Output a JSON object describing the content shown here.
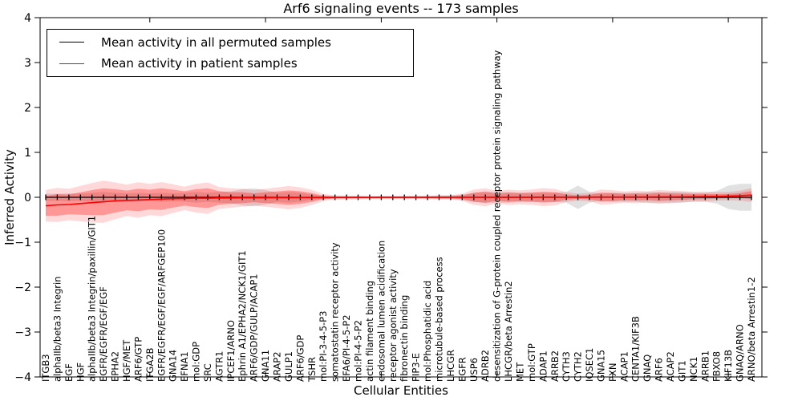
{
  "title": "Arf6 signaling events -- 173 samples",
  "legend": {
    "entries": [
      {
        "label": "Mean activity in all permuted samples",
        "color": "#000000"
      },
      {
        "label": "Mean activity in patient samples",
        "color": "#ff0000"
      }
    ]
  },
  "chart_data": {
    "type": "line",
    "title": "Arf6 signaling events -- 173 samples",
    "xlabel": "Cellular Entities",
    "ylabel": "Inferred Activity",
    "ylim": [
      -4,
      4
    ],
    "yticks": [
      4,
      3,
      2,
      1,
      0,
      -1,
      -2,
      -3,
      -4
    ],
    "xtick_indices": [
      9,
      19,
      29,
      39,
      49,
      59
    ],
    "grid": false,
    "legend_position": "upper left",
    "categories": [
      "ITGB3",
      "alphaIIb/beta3 Integrin",
      "EGF",
      "HGF",
      "alphaIIb/beta3 Integrin/paxillin/GIT1",
      "EGFR/EGFR/EGF/EGF",
      "EPHA2",
      "HGF/MET",
      "ARF6/GTP",
      "ITGA2B",
      "EGFR/EGFR/EGF/EGF/ARFGEP100",
      "GNA14",
      "EFNA1",
      "mol:GDP",
      "SRC",
      "AGTR1",
      "IPCEF1/ARNO",
      "Ephrin A1/EPHA2/NCK1/GIT1",
      "ARF6/GDP/GULP/ACAP1",
      "GNA11",
      "ARAP2",
      "GULP1",
      "ARF6/GDP",
      "TSHR",
      "mol:PI-3-4-5-P3",
      "somatostatin receptor activity",
      "EFA6/PI-4-5-P2",
      "mol:PI-4-5-P2",
      "actin filament binding",
      "endosomal lumen acidification",
      "receptor agonist activity",
      "fibronectin binding",
      "PIP3-E",
      "mol:Phosphatidic acid",
      "microtubule-based process",
      "LHCGR",
      "EGFR",
      "USP6",
      "ADRB2",
      "desensitization of G-protein coupled receptor protein signaling pathway",
      "LHCGR/beta Arrestin2",
      "MET",
      "mol:GTP",
      "ADAP1",
      "ARRB2",
      "CYTH3",
      "CYTH2",
      "IQSEC1",
      "GNA15",
      "PXN",
      "ACAP1",
      "CENTA1/KIF3B",
      "GNAQ",
      "ARF6",
      "ACAP2",
      "GIT1",
      "NCK1",
      "ARRB1",
      "FBXO8",
      "KIF13B",
      "GNAQ/ARNO",
      "ARNO/beta Arrestin1-2"
    ],
    "series": [
      {
        "name": "Mean activity in all permuted samples",
        "color": "#000000",
        "band_color": "#888888",
        "values": [
          0,
          0,
          0,
          0,
          0,
          0,
          0,
          0,
          0,
          0,
          0,
          0,
          0,
          0,
          0,
          0,
          0,
          0,
          0,
          0,
          0,
          0,
          0,
          0,
          0,
          0,
          0,
          0,
          0,
          0,
          0,
          0,
          0,
          0,
          0,
          0,
          0,
          0,
          0,
          0,
          0,
          0,
          0,
          0,
          0,
          0,
          0,
          0,
          0,
          0,
          0,
          0,
          0,
          0,
          0,
          0,
          0,
          0,
          0,
          0,
          0,
          0
        ],
        "band_halfwidth": [
          0.08,
          0.08,
          0.09,
          0.08,
          0.1,
          0.12,
          0.1,
          0.09,
          0.1,
          0.09,
          0.1,
          0.09,
          0.1,
          0.12,
          0.1,
          0.12,
          0.13,
          0.18,
          0.2,
          0.16,
          0.1,
          0.12,
          0.1,
          0.06,
          0.03,
          0.02,
          0.02,
          0.02,
          0.02,
          0.02,
          0.02,
          0.02,
          0.02,
          0.02,
          0.03,
          0.04,
          0.06,
          0.1,
          0.13,
          0.12,
          0.12,
          0.1,
          0.1,
          0.1,
          0.1,
          0.12,
          0.26,
          0.12,
          0.08,
          0.1,
          0.1,
          0.1,
          0.12,
          0.12,
          0.12,
          0.12,
          0.1,
          0.1,
          0.14,
          0.26,
          0.3,
          0.3
        ]
      },
      {
        "name": "Mean activity in patient samples",
        "color": "#ff0000",
        "band_color": "#ff0000",
        "values": [
          -0.19,
          -0.17,
          -0.16,
          -0.14,
          -0.12,
          -0.1,
          -0.08,
          -0.07,
          -0.06,
          -0.05,
          -0.04,
          -0.03,
          -0.025,
          -0.02,
          -0.02,
          -0.015,
          -0.015,
          -0.01,
          -0.01,
          -0.01,
          -0.008,
          -0.008,
          -0.006,
          -0.005,
          -0.005,
          -0.004,
          -0.004,
          -0.003,
          -0.003,
          -0.002,
          -0.002,
          -0.002,
          -0.001,
          -0.001,
          0,
          0,
          0,
          0,
          0,
          0.001,
          0.001,
          0.002,
          0.002,
          0.003,
          0.003,
          0.004,
          0.004,
          0.005,
          0.005,
          0.006,
          0.006,
          0.008,
          0.008,
          0.01,
          0.01,
          0.012,
          0.015,
          0.018,
          0.02,
          0.025,
          0.035,
          0.05
        ],
        "band_halfwidth": [
          0.22,
          0.24,
          0.22,
          0.25,
          0.28,
          0.3,
          0.26,
          0.22,
          0.25,
          0.22,
          0.24,
          0.2,
          0.16,
          0.2,
          0.22,
          0.15,
          0.13,
          0.12,
          0.1,
          0.12,
          0.14,
          0.16,
          0.14,
          0.1,
          0.04,
          0.02,
          0.015,
          0.015,
          0.01,
          0.01,
          0.01,
          0.01,
          0.01,
          0.015,
          0.02,
          0.02,
          0.04,
          0.1,
          0.12,
          0.08,
          0.1,
          0.09,
          0.1,
          0.12,
          0.11,
          0.06,
          0.04,
          0.05,
          0.1,
          0.09,
          0.07,
          0.08,
          0.07,
          0.09,
          0.08,
          0.07,
          0.06,
          0.06,
          0.05,
          0.05,
          0.06,
          0.09
        ]
      }
    ]
  }
}
